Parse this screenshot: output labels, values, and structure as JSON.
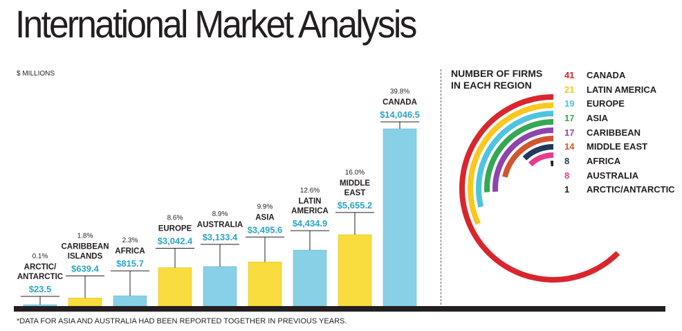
{
  "title": "International Market Analysis",
  "units_label": "$ MILLIONS",
  "footnote": "*DATA FOR ASIA AND AUSTRALIA HAD BEEN REPORTED TOGETHER IN PREVIOUS YEARS.",
  "colors": {
    "yellow": "#f9dc3e",
    "blue": "#88d0e6",
    "value_text": "#2ba6c6",
    "dark": "#231f20"
  },
  "chart_data": [
    {
      "type": "bar",
      "title": "",
      "ylabel": "$ MILLIONS",
      "categories": [
        [
          "ARCTIC/",
          "ANTARCTIC"
        ],
        [
          "CARIBBEAN",
          "ISLANDS"
        ],
        [
          "AFRICA"
        ],
        [
          "EUROPE"
        ],
        [
          "AUSTRALIA"
        ],
        [
          "ASIA"
        ],
        [
          "LATIN",
          "AMERICA"
        ],
        [
          "MIDDLE",
          "EAST"
        ],
        [
          "CANADA"
        ]
      ],
      "values": [
        23.5,
        639.4,
        815.7,
        3042.4,
        3133.4,
        3495.6,
        4434.9,
        5655.2,
        14046.5
      ],
      "value_labels": [
        "$23.5",
        "$639.4",
        "$815.7",
        "$3,042.4",
        "$3,133.4",
        "$3,495.6",
        "$4,434.9",
        "$5,655.2",
        "$14,046.5"
      ],
      "percent_labels": [
        "0.1%",
        "1.8%",
        "2.3%",
        "8.6%",
        "8.9%",
        "9.9%",
        "12.6%",
        "16.0%",
        "39.8%"
      ],
      "bar_colors": [
        "#88d0e6",
        "#f9dc3e",
        "#88d0e6",
        "#f9dc3e",
        "#88d0e6",
        "#f9dc3e",
        "#88d0e6",
        "#f9dc3e",
        "#88d0e6"
      ],
      "ylim": [
        0,
        14046.5
      ]
    },
    {
      "type": "pie",
      "title": "NUMBER OF FIRMS IN EACH REGION",
      "title_lines": [
        "NUMBER OF FIRMS",
        "IN EACH REGION"
      ],
      "categories": [
        "CANADA",
        "LATIN AMERICA",
        "EUROPE",
        "ASIA",
        "CARIBBEAN",
        "MIDDLE EAST",
        "AFRICA",
        "AUSTRALIA",
        "ARCTIC/ANTARCTIC"
      ],
      "values": [
        41,
        21,
        19,
        17,
        17,
        14,
        8,
        8,
        1
      ],
      "colors": [
        "#d9262e",
        "#f9c81e",
        "#4ec4e0",
        "#34a853",
        "#8e44ad",
        "#d4542d",
        "#1d3a5c",
        "#e73c8e",
        "#231f20"
      ],
      "max": 41
    }
  ]
}
